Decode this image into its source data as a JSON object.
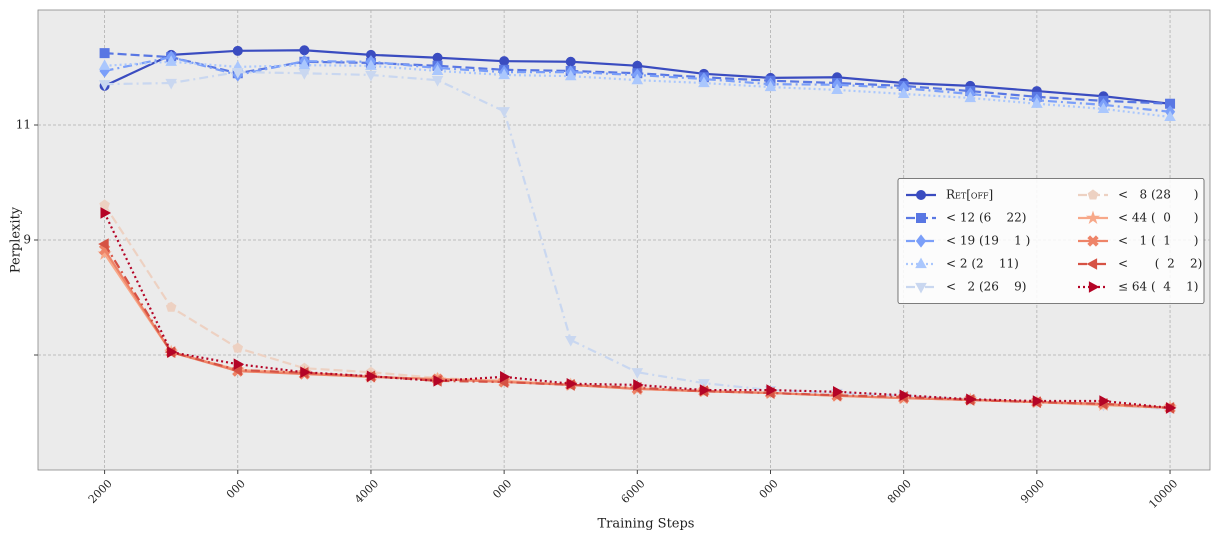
{
  "chart_data": {
    "type": "line",
    "xlabel": "Training Steps",
    "ylabel": "Perplexity",
    "x": [
      2000,
      2500,
      3000,
      3500,
      4000,
      4500,
      5000,
      5500,
      6000,
      6500,
      7000,
      7500,
      8000,
      8500,
      9000,
      9500,
      10000
    ],
    "xlim": [
      1500,
      10300
    ],
    "xticks": [
      2000,
      {
        "value": 3000,
        "label": "000"
      },
      4000,
      {
        "value": 5000,
        "label": "000"
      },
      6000,
      {
        "value": 7000,
        "label": "000"
      },
      8000,
      9000,
      10000
    ],
    "ylim": [
      5,
      13
    ],
    "yticks": [
      {
        "value": 7,
        "label": null
      },
      9,
      11
    ],
    "grid": true,
    "legend": "center right",
    "series": [
      {
        "name": "Ret[off]",
        "color": "#3a4cc0",
        "marker": "circle",
        "dash": "solid",
        "values": [
          11.68,
          12.22,
          12.29,
          12.3,
          12.22,
          12.17,
          12.11,
          12.1,
          12.03,
          11.89,
          11.82,
          11.83,
          11.73,
          11.68,
          11.59,
          11.5,
          11.37
        ]
      },
      {
        "name": "< 12 (6    22)",
        "color": "#5977e3",
        "marker": "square",
        "dash": "dashed",
        "values": [
          12.25,
          12.18,
          11.9,
          12.1,
          12.08,
          12.03,
          11.96,
          11.94,
          11.9,
          11.83,
          11.77,
          11.73,
          11.68,
          11.59,
          11.49,
          11.42,
          11.37
        ]
      },
      {
        "name": "< 19 (19    1 )",
        "color": "#7b9ff9",
        "marker": "diamond",
        "dash": "dashdot",
        "values": [
          11.94,
          12.18,
          11.87,
          12.11,
          12.1,
          11.99,
          11.92,
          11.92,
          11.87,
          11.8,
          11.71,
          11.7,
          11.64,
          11.54,
          11.43,
          11.35,
          11.23
        ]
      },
      {
        "name": "< 2 (2    11)",
        "color": "#aac7fd",
        "marker": "triangle-up",
        "dash": "dotted",
        "values": [
          12.03,
          12.1,
          12.01,
          12.04,
          12.03,
          11.94,
          11.87,
          11.85,
          11.78,
          11.73,
          11.66,
          11.61,
          11.54,
          11.47,
          11.37,
          11.28,
          11.14
        ]
      },
      {
        "name": "<   2 (26    9)",
        "color": "#c9d7f0",
        "marker": "triangle-down",
        "dash": "dashdot",
        "values": [
          11.71,
          11.73,
          11.92,
          11.9,
          11.87,
          11.78,
          11.24,
          7.26,
          6.7,
          6.51,
          6.39,
          6.34,
          6.29,
          6.23,
          6.18,
          6.13,
          6.06
        ]
      },
      {
        "name": "<   8 (28      )",
        "color": "#edd1c2",
        "marker": "pentagon",
        "dash": "dashed",
        "values": [
          9.61,
          7.83,
          7.12,
          6.77,
          6.7,
          6.6,
          6.55,
          6.48,
          6.43,
          6.37,
          6.34,
          6.3,
          6.25,
          6.22,
          6.18,
          6.13,
          6.08
        ]
      },
      {
        "name": "< 44 (  0      )",
        "color": "#f7a889",
        "marker": "star",
        "dash": "solid",
        "values": [
          8.76,
          7.05,
          6.74,
          6.69,
          6.62,
          6.58,
          6.55,
          6.48,
          6.41,
          6.37,
          6.34,
          6.29,
          6.25,
          6.22,
          6.18,
          6.13,
          6.08
        ]
      },
      {
        "name": "<   1 (  1      )",
        "color": "#ee8468",
        "marker": "x",
        "dash": "solid",
        "values": [
          8.83,
          7.05,
          6.72,
          6.67,
          6.62,
          6.58,
          6.53,
          6.48,
          6.41,
          6.37,
          6.34,
          6.29,
          6.25,
          6.22,
          6.18,
          6.15,
          6.08
        ]
      },
      {
        "name": "<       (  2    2)",
        "color": "#d65244",
        "marker": "triangle-left",
        "dash": "dashdot",
        "values": [
          8.93,
          7.05,
          6.74,
          6.69,
          6.63,
          6.55,
          6.53,
          6.48,
          6.43,
          6.37,
          6.34,
          6.3,
          6.27,
          6.22,
          6.18,
          6.15,
          6.08
        ]
      },
      {
        "name": "≤ 64 (  4    1)",
        "color": "#b40426",
        "marker": "triangle-right",
        "dash": "dotted",
        "values": [
          9.47,
          7.05,
          6.84,
          6.7,
          6.63,
          6.55,
          6.62,
          6.5,
          6.48,
          6.39,
          6.39,
          6.36,
          6.3,
          6.23,
          6.2,
          6.2,
          6.08
        ]
      }
    ]
  }
}
